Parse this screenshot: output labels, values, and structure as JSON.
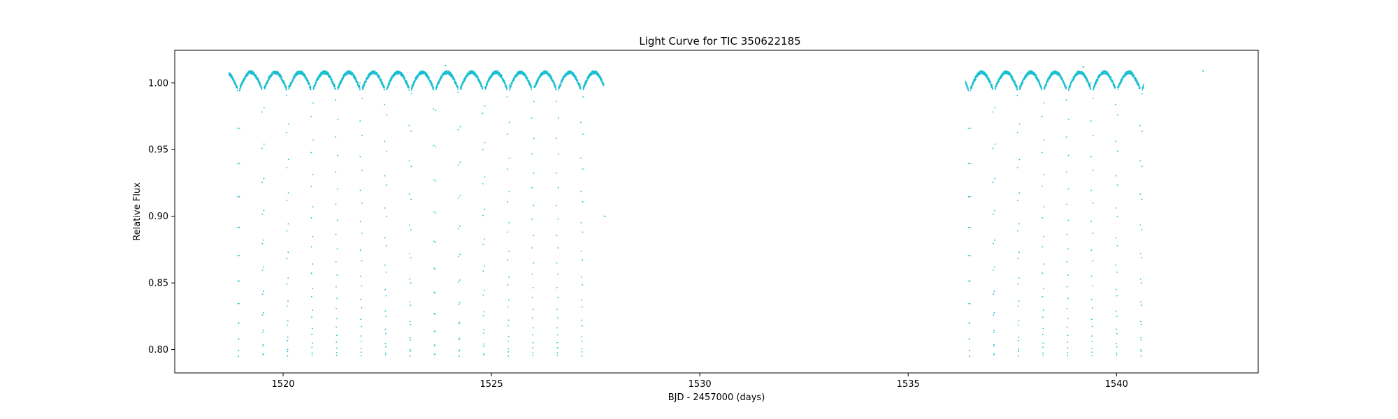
{
  "chart_data": {
    "type": "scatter",
    "title": "Light Curve for TIC 350622185",
    "xlabel": "BJD - 2457000 (days)",
    "ylabel": "Relative Flux",
    "xlim": [
      1517.4,
      1543.4
    ],
    "ylim": [
      0.7825,
      1.0245
    ],
    "x_ticks": [
      1520,
      1525,
      1530,
      1535,
      1540
    ],
    "x_tick_labels": [
      "1520",
      "1525",
      "1530",
      "1535",
      "1540"
    ],
    "y_ticks": [
      0.8,
      0.85,
      0.9,
      0.95,
      1.0
    ],
    "y_tick_labels": [
      "0.80",
      "0.85",
      "0.90",
      "0.95",
      "1.00"
    ],
    "grid": false,
    "legend": "none",
    "marker_color": "#17becf",
    "period_days": 0.5886,
    "eclipse_depth_min_flux": 0.795,
    "out_of_eclipse_max_flux": 1.008,
    "segments": [
      {
        "x_start": 1518.7,
        "x_end": 1527.7,
        "first_eclipse": 1518.93,
        "eclipse_count": 15
      },
      {
        "x_start": 1536.38,
        "x_end": 1540.65,
        "first_eclipse": 1536.47,
        "eclipse_count": 8
      }
    ],
    "outliers": [
      {
        "x": 1523.9,
        "y": 1.013
      },
      {
        "x": 1539.2,
        "y": 1.012
      },
      {
        "x": 1542.08,
        "y": 1.009
      },
      {
        "x": 1527.72,
        "y": 0.9
      }
    ]
  }
}
